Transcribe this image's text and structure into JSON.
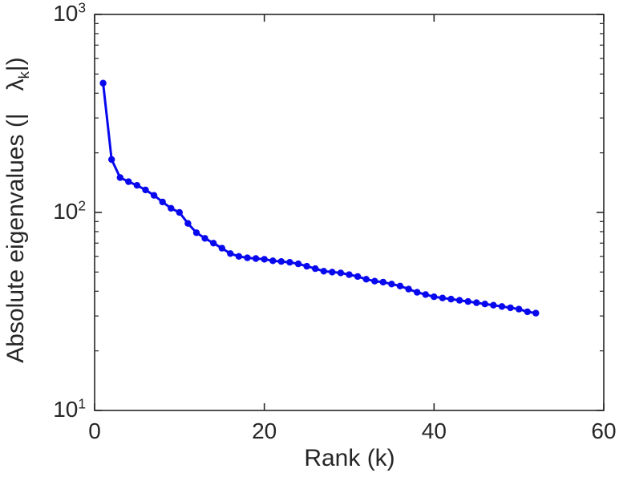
{
  "chart_data": {
    "type": "line",
    "title": "",
    "xlabel": "Rank (k)",
    "ylabel_parts": {
      "text": "Absolute eigenvalues (|",
      "lambda": "λ",
      "sub": "k",
      "close": "|)"
    },
    "xlim": [
      0,
      60
    ],
    "ylim_log": [
      10,
      1000
    ],
    "y_scale": "log",
    "grid": "off",
    "legend": "none",
    "line_color": "#0808ee",
    "marker": "filled-circle",
    "x_ticks": [
      {
        "label": "0",
        "value": 0
      },
      {
        "label": "20",
        "value": 20
      },
      {
        "label": "40",
        "value": 40
      },
      {
        "label": "60",
        "value": 60
      }
    ],
    "y_ticks": [
      {
        "mant": "10",
        "exp": "1",
        "value": 10
      },
      {
        "mant": "10",
        "exp": "2",
        "value": 100
      },
      {
        "mant": "10",
        "exp": "3",
        "value": 1000
      }
    ],
    "series": [
      {
        "name": "absolute-eigenvalues",
        "x": [
          1,
          2,
          3,
          4,
          5,
          6,
          7,
          8,
          9,
          10,
          11,
          12,
          13,
          14,
          15,
          16,
          17,
          18,
          19,
          20,
          21,
          22,
          23,
          24,
          25,
          26,
          27,
          28,
          29,
          30,
          31,
          32,
          33,
          34,
          35,
          36,
          37,
          38,
          39,
          40,
          41,
          42,
          43,
          44,
          45,
          46,
          47,
          48,
          49,
          50,
          51,
          52
        ],
        "y": [
          450,
          185,
          150,
          143,
          137,
          130,
          122,
          113,
          105,
          100,
          88,
          79,
          74,
          70,
          66,
          62,
          60,
          59,
          58.5,
          58,
          57,
          56.5,
          56,
          55,
          53.5,
          52,
          50.5,
          50,
          49.5,
          48.5,
          47.5,
          46,
          45,
          44.5,
          43.5,
          42.5,
          41,
          39.5,
          38.5,
          37.5,
          37,
          36.5,
          36,
          35.5,
          35,
          34.5,
          34,
          33.5,
          33,
          32.5,
          31.5,
          31
        ]
      }
    ]
  }
}
